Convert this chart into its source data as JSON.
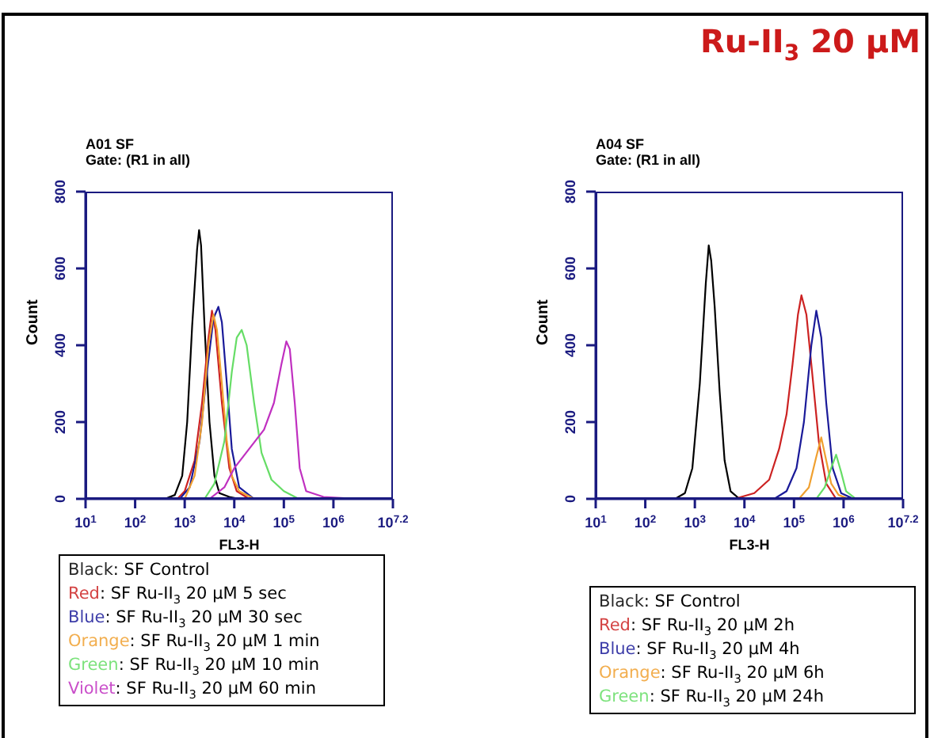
{
  "chart_data": [
    {
      "type": "line",
      "title": "A01 SF",
      "subtitle": "Gate: (R1 in all)",
      "xlabel": "FL3-H",
      "ylabel": "Count",
      "log": "x",
      "grid": false,
      "legend": "bottom",
      "marker": "none",
      "line_style": "solid",
      "xlim": [
        10,
        15848932
      ],
      "xticks": [
        {
          "value": 10,
          "label": "10$^{1}$"
        },
        {
          "value": 100,
          "label": "10$^{2}$"
        },
        {
          "value": 1000,
          "label": "10$^{3}$"
        },
        {
          "value": 10000,
          "label": "10$^{4}$"
        },
        {
          "value": 100000,
          "label": "10$^{5}$"
        },
        {
          "value": 1000000,
          "label": "10$^{6}$"
        },
        {
          "value": 15848932,
          "label": "10$^{7.2}$"
        }
      ],
      "ylim": [
        0,
        800
      ],
      "yticks": [
        0,
        200,
        400,
        600,
        800
      ],
      "series": [
        {
          "name": "Black: SF Control",
          "color": "#000000",
          "x": [
            398,
            631,
            891,
            1122,
            1413,
            1778,
            1950,
            2138,
            2512,
            3162,
            3981,
            5012,
            7943,
            12589
          ],
          "values": [
            0,
            10,
            60,
            200,
            450,
            650,
            700,
            660,
            450,
            200,
            60,
            15,
            5,
            0
          ]
        },
        {
          "name": "Red: SF Ru-II$_{3}$ 20 µM 5 sec",
          "color": "#cc2222",
          "x": [
            708,
            1000,
            1585,
            2239,
            3020,
            3548,
            4169,
            5623,
            7943,
            11220,
            19953
          ],
          "values": [
            0,
            20,
            100,
            250,
            420,
            490,
            440,
            250,
            80,
            20,
            0
          ]
        },
        {
          "name": "Blue: SF Ru-II$_{3}$ 20 µM 30 sec",
          "color": "#1a1a99",
          "x": [
            794,
            1259,
            1995,
            2818,
            3802,
            4786,
            5623,
            7079,
            8913,
            12589,
            25119
          ],
          "values": [
            0,
            30,
            150,
            330,
            470,
            500,
            460,
            300,
            130,
            30,
            0
          ]
        },
        {
          "name": "Orange: SF Ru-II$_{3}$ 20 µM 1 min",
          "color": "#f0a030",
          "x": [
            1000,
            1585,
            2239,
            3020,
            3802,
            4467,
            5623,
            7079,
            8913,
            12589,
            25119
          ],
          "values": [
            0,
            60,
            200,
            400,
            480,
            440,
            300,
            150,
            60,
            20,
            0
          ]
        },
        {
          "name": "Green: SF Ru-II$_{3}$ 20 µM 10 min",
          "color": "#66dd66",
          "x": [
            2512,
            3981,
            6310,
            8913,
            11220,
            14125,
            17783,
            25119,
            35481,
            56234,
            100000,
            199526
          ],
          "values": [
            0,
            40,
            150,
            330,
            420,
            440,
            400,
            250,
            120,
            50,
            20,
            0
          ]
        },
        {
          "name": "Violet: SF Ru-II$_{3}$ 20 µM 60 min",
          "color": "#c030c0",
          "x": [
            3162,
            6310,
            10000,
            19953,
            39811,
            63096,
            89125,
            112202,
            131826,
            165959,
            208930,
            281838,
            630957,
            3162278
          ],
          "values": [
            0,
            30,
            80,
            130,
            180,
            250,
            350,
            410,
            390,
            250,
            80,
            20,
            5,
            0
          ]
        }
      ]
    },
    {
      "type": "line",
      "title": "A04 SF",
      "subtitle": "Gate: (R1 in all)",
      "xlabel": "FL3-H",
      "ylabel": "Count",
      "log": "x",
      "grid": false,
      "legend": "bottom",
      "marker": "none",
      "line_style": "solid",
      "annotations": [
        "Ru-II$_{3}$ 20 µM"
      ],
      "xlim": [
        10,
        15848932
      ],
      "xticks": [
        {
          "value": 10,
          "label": "10$^{1}$"
        },
        {
          "value": 100,
          "label": "10$^{2}$"
        },
        {
          "value": 1000,
          "label": "10$^{3}$"
        },
        {
          "value": 10000,
          "label": "10$^{4}$"
        },
        {
          "value": 100000,
          "label": "10$^{5}$"
        },
        {
          "value": 1000000,
          "label": "10$^{6}$"
        },
        {
          "value": 15848932,
          "label": "10$^{7.2}$"
        }
      ],
      "ylim": [
        0,
        800
      ],
      "yticks": [
        0,
        200,
        400,
        600,
        800
      ],
      "series": [
        {
          "name": "Black: SF Control",
          "color": "#000000",
          "x": [
            398,
            631,
            891,
            1259,
            1660,
            1905,
            2138,
            2512,
            3162,
            3981,
            5248,
            7943
          ],
          "values": [
            0,
            15,
            80,
            300,
            560,
            660,
            620,
            500,
            280,
            100,
            20,
            0
          ]
        },
        {
          "name": "Red: SF Ru-II$_{3}$ 20 µM 2h",
          "color": "#cc2222",
          "x": [
            6310,
            15849,
            31623,
            50119,
            70795,
            93325,
            120226,
            141254,
            177828,
            223872,
            316228,
            446684,
            707946
          ],
          "values": [
            0,
            15,
            50,
            130,
            220,
            350,
            480,
            530,
            480,
            350,
            150,
            40,
            0
          ]
        },
        {
          "name": "Blue: SF Ru-II$_{3}$ 20 µM 4h",
          "color": "#1a1a99",
          "x": [
            39811,
            70795,
            112202,
            158489,
            223872,
            281838,
            354813,
            446684,
            602560,
            891251,
            1584893
          ],
          "values": [
            0,
            20,
            80,
            200,
            400,
            490,
            420,
            250,
            80,
            15,
            0
          ]
        },
        {
          "name": "Orange: SF Ru-II$_{3}$ 20 µM 6h",
          "color": "#f0a030",
          "x": [
            125893,
            199526,
            281838,
            354813,
            446684,
            562341,
            794328,
            1258925
          ],
          "values": [
            0,
            30,
            110,
            160,
            100,
            40,
            10,
            0
          ]
        },
        {
          "name": "Green: SF Ru-II$_{3}$ 20 µM 24h",
          "color": "#66dd66",
          "x": [
            281838,
            416869,
            562341,
            707946,
            891251,
            1122018,
            1778279
          ],
          "values": [
            0,
            30,
            80,
            115,
            70,
            20,
            0
          ]
        }
      ]
    }
  ]
}
